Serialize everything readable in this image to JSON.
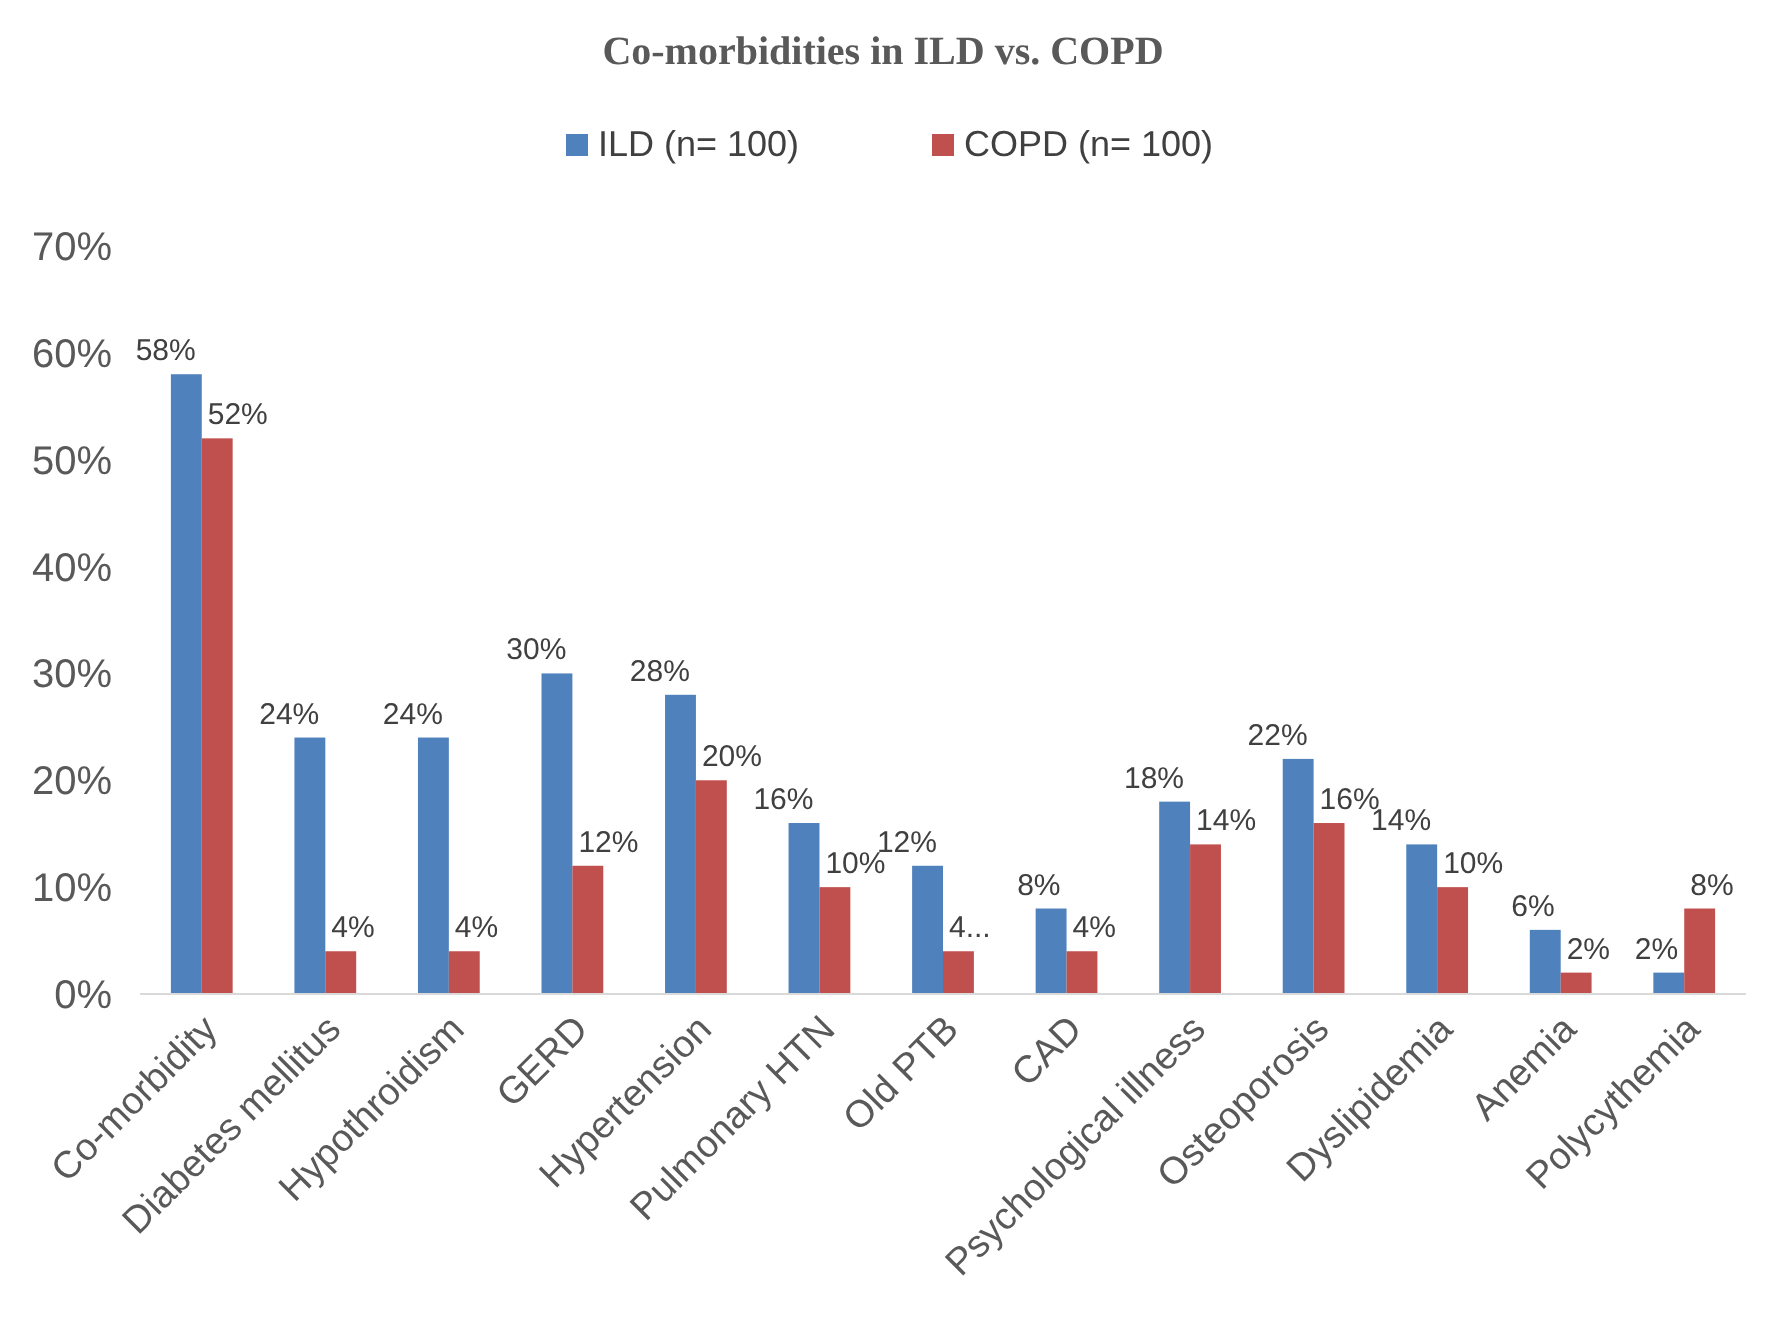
{
  "chart_data": {
    "type": "bar",
    "title": "Co-morbidities in ILD vs. COPD",
    "categories": [
      "Co-morbidity",
      "Diabetes mellitus",
      "Hypothroidism",
      "GERD",
      "Hypertension",
      "Pulmonary HTN",
      "Old PTB",
      "CAD",
      "Psychological illness",
      "Osteoporosis",
      "Dyslipidemia",
      "Anemia",
      "Polycythemia"
    ],
    "series": [
      {
        "name": "ILD (n= 100)",
        "color": "#4f81bd",
        "values": [
          58,
          24,
          24,
          30,
          28,
          16,
          12,
          8,
          18,
          22,
          14,
          6,
          2
        ],
        "value_labels": [
          "58%",
          "24%",
          "24%",
          "30%",
          "28%",
          "16%",
          "12%",
          "8%",
          "18%",
          "22%",
          "14%",
          "6%",
          "2%"
        ]
      },
      {
        "name": "COPD (n= 100)",
        "color": "#c0504d",
        "values": [
          52,
          4,
          4,
          12,
          20,
          10,
          4,
          4,
          14,
          16,
          10,
          2,
          8
        ],
        "value_labels": [
          "52%",
          "4%",
          "4%",
          "12%",
          "20%",
          "10%",
          "4...",
          "4%",
          "14%",
          "16%",
          "10%",
          "2%",
          "8%"
        ]
      }
    ],
    "ylim": [
      0,
      70
    ],
    "yticks": [
      {
        "value": 0,
        "label": "0%"
      },
      {
        "value": 10,
        "label": "10%"
      },
      {
        "value": 20,
        "label": "20%"
      },
      {
        "value": 30,
        "label": "30%"
      },
      {
        "value": 40,
        "label": "40%"
      },
      {
        "value": 50,
        "label": "50%"
      },
      {
        "value": 60,
        "label": "60%"
      },
      {
        "value": 70,
        "label": "70%"
      }
    ],
    "grid": false,
    "legend": "top"
  }
}
